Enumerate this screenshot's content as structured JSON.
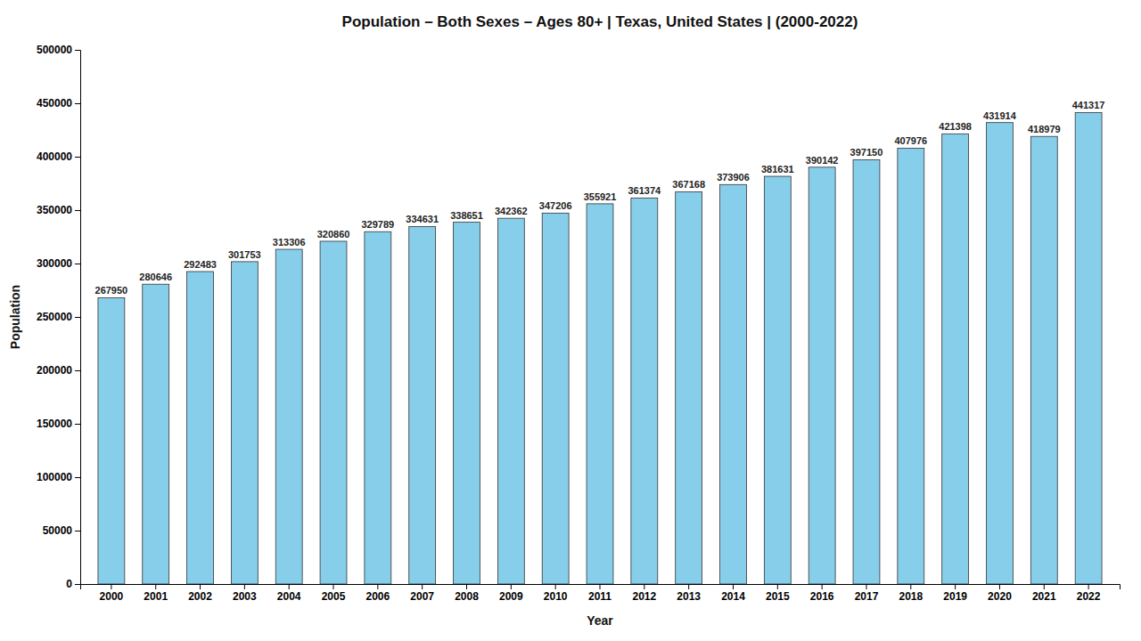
{
  "chart_data": {
    "type": "bar",
    "title": "Population – Both Sexes – Ages 80+ | Texas, United States |  (2000-2022)",
    "xlabel": "Year",
    "ylabel": "Population",
    "categories": [
      "2000",
      "2001",
      "2002",
      "2003",
      "2004",
      "2005",
      "2006",
      "2007",
      "2008",
      "2009",
      "2010",
      "2011",
      "2012",
      "2013",
      "2014",
      "2015",
      "2016",
      "2017",
      "2018",
      "2019",
      "2020",
      "2021",
      "2022"
    ],
    "values": [
      267950,
      280646,
      292483,
      301753,
      313306,
      320860,
      329789,
      334631,
      338651,
      342362,
      347206,
      355921,
      361374,
      367168,
      373906,
      381631,
      390142,
      397150,
      407976,
      421398,
      431914,
      418979,
      441317
    ],
    "color": "#87CEEB",
    "ylim": [
      0,
      500000
    ],
    "yticks": [
      0,
      50000,
      100000,
      150000,
      200000,
      250000,
      300000,
      350000,
      400000,
      450000,
      500000
    ],
    "grid": false,
    "data_labels": true
  }
}
